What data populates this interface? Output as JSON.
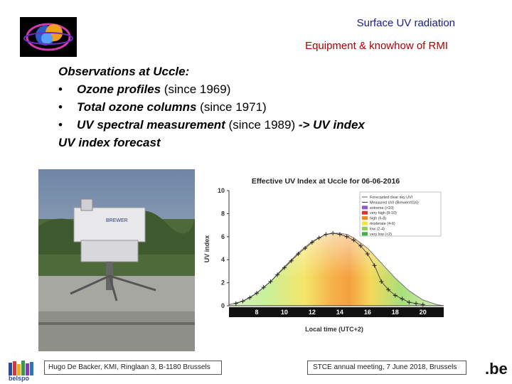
{
  "header": {
    "title": "Surface UV radiation",
    "subtitle": "Equipment & knowhow of RMI"
  },
  "observations": {
    "heading": "Observations at Uccle:",
    "items": [
      {
        "bullet": "•",
        "label": "Ozone profiles",
        "note": " (since 1969)"
      },
      {
        "bullet": "•",
        "label": "Total ozone columns",
        "note": " (since 1971)"
      },
      {
        "bullet": "•",
        "label": "UV spectral measurement",
        "note": " (since 1989)",
        "suffix": " -> UV index"
      }
    ],
    "forecast": "UV index forecast"
  },
  "photo": {
    "instrument_label": "BREWER"
  },
  "chart_data": {
    "type": "line",
    "title": "Effective UV Index at Uccle for 06-06-2016",
    "xlabel": "Local time (UTC+2)",
    "ylabel": "UV index",
    "xlim": [
      6,
      21.5
    ],
    "ylim": [
      0,
      10
    ],
    "x_ticks": [
      8,
      10,
      12,
      14,
      16,
      18,
      20
    ],
    "y_ticks": [
      0,
      2,
      4,
      6,
      8,
      10
    ],
    "legend_position": "top-right",
    "legend": [
      {
        "label": "Forecasted clear sky UVI",
        "color": "#666666"
      },
      {
        "label": "Measured UVI (Brewer#016)",
        "color": "#333333"
      },
      {
        "label": "extreme (>10)",
        "color": "#8e5bd6"
      },
      {
        "label": "very high (8-10)",
        "color": "#e03232"
      },
      {
        "label": "high (6-8)",
        "color": "#f08a24"
      },
      {
        "label": "moderate (4-6)",
        "color": "#f2e43a"
      },
      {
        "label": "low (2-4)",
        "color": "#8fd24a"
      },
      {
        "label": "very low (<2)",
        "color": "#3fb24a"
      }
    ],
    "series": [
      {
        "name": "Forecasted clear sky UVI",
        "x": [
          6,
          7,
          8,
          9,
          10,
          11,
          12,
          13,
          13.5,
          14,
          14.5,
          15,
          16,
          17,
          18,
          19,
          20,
          21,
          21.5
        ],
        "values": [
          0.1,
          0.4,
          1.1,
          2.1,
          3.4,
          4.6,
          5.6,
          6.2,
          6.3,
          6.3,
          6.2,
          5.9,
          5.0,
          3.7,
          2.4,
          1.3,
          0.5,
          0.1,
          0.0
        ]
      },
      {
        "name": "Measured UVI (Brewer#016)",
        "x": [
          6.5,
          7,
          7.5,
          8,
          8.5,
          9,
          9.5,
          10,
          10.5,
          11,
          11.5,
          12,
          12.5,
          13,
          13.5,
          14,
          14.5,
          15,
          15.5,
          16,
          16.5,
          17,
          17.5,
          18,
          18.5,
          19,
          19.5,
          20
        ],
        "values": [
          0.2,
          0.4,
          0.7,
          1.1,
          1.6,
          2.1,
          2.7,
          3.3,
          3.9,
          4.5,
          5.0,
          5.5,
          5.9,
          6.2,
          6.3,
          6.2,
          6.0,
          5.7,
          5.2,
          4.5,
          3.5,
          2.1,
          1.4,
          0.9,
          0.6,
          0.3,
          0.2,
          0.1
        ]
      }
    ]
  },
  "footer": {
    "left": "Hugo De Backer, KMI, Ringlaan 3, B-1180 Brussels",
    "right": "STCE annual meeting, 7 June 2018, Brussels",
    "belspo": "belspo",
    "be": ".be"
  },
  "colors": {
    "title": "#1a1a8c",
    "subtitle": "#b00000"
  }
}
